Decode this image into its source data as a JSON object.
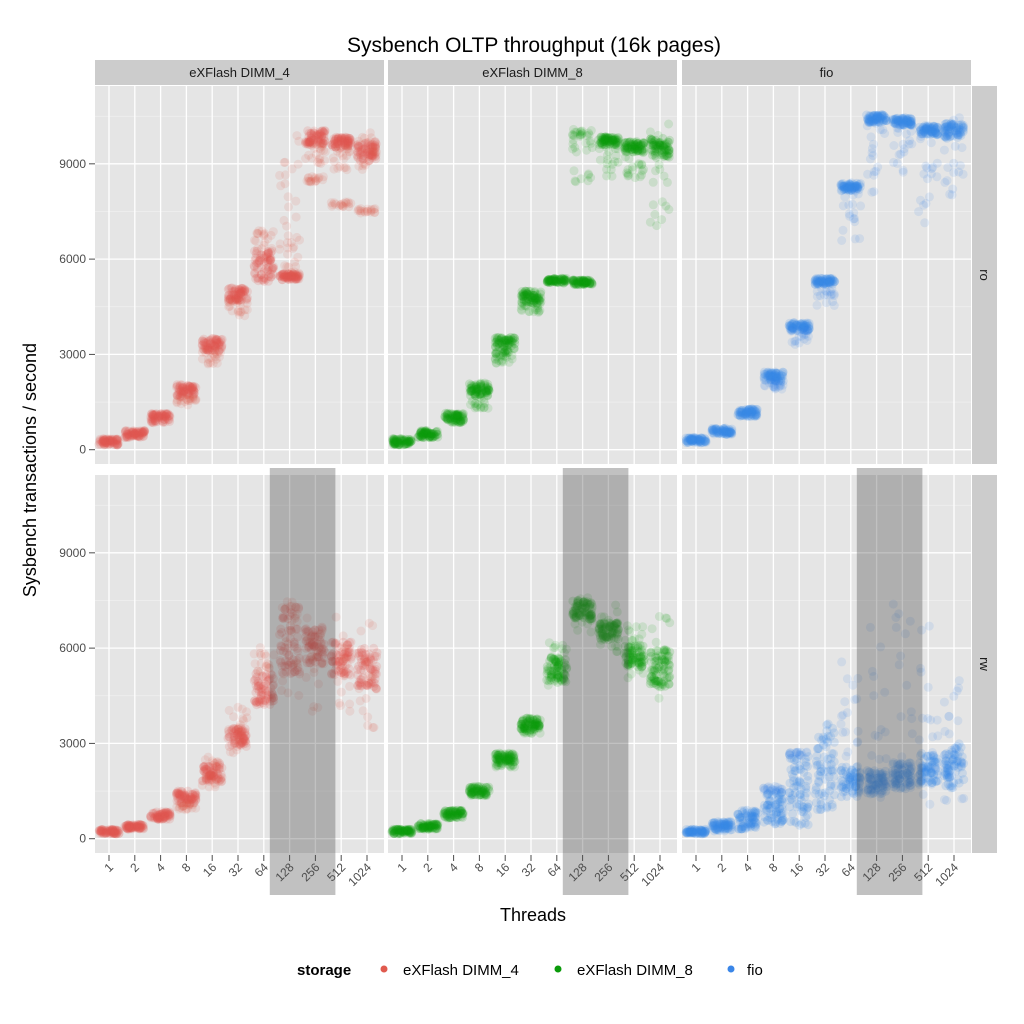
{
  "chart_data": {
    "type": "scatter",
    "title": "Sysbench OLTP throughput (16k pages)",
    "xlabel": "Threads",
    "ylabel": "Sysbench transactions / second",
    "x_categories": [
      "1",
      "2",
      "4",
      "8",
      "16",
      "32",
      "64",
      "128",
      "256",
      "512",
      "1024"
    ],
    "y_ticks": [
      "0",
      "3000",
      "6000",
      "9000"
    ],
    "ylim": [
      -450,
      11450
    ],
    "grid": true,
    "facet_columns": [
      "eXFlash DIMM_4",
      "eXFlash DIMM_8",
      "fio"
    ],
    "facet_rows": [
      "ro",
      "rw"
    ],
    "legend": {
      "title": "storage",
      "placement": "bottom",
      "entries": [
        "eXFlash DIMM_4",
        "eXFlash DIMM_8",
        "fio"
      ]
    },
    "colors": {
      "eXFlash DIMM_4": "#e05a4e",
      "eXFlash DIMM_8": "#0a9a0a",
      "fio": "#3a86e8"
    },
    "highlight_rw": {
      "from": "64",
      "to": "256"
    },
    "panels": [
      {
        "row": "ro",
        "storage": "eXFlash DIMM_4",
        "bands": [
          [
            [
              150,
              350
            ]
          ],
          [
            [
              380,
              600
            ]
          ],
          [
            [
              850,
              1150
            ]
          ],
          [
            [
              1650,
              2050
            ],
            [
              1400,
              1650
            ]
          ],
          [
            [
              3100,
              3500
            ],
            [
              2700,
              3100
            ]
          ],
          [
            [
              4700,
              5100
            ],
            [
              4200,
              4700
            ]
          ],
          [
            [
              5300,
              6300
            ],
            [
              6300,
              6900
            ]
          ],
          [
            [
              5350,
              5550
            ],
            [
              6600,
              10050
            ],
            [
              5550,
              6600
            ]
          ],
          [
            [
              9600,
              10050
            ],
            [
              8400,
              8600
            ],
            [
              9000,
              9600
            ]
          ],
          [
            [
              9500,
              9850
            ],
            [
              7650,
              7800
            ],
            [
              8800,
              9500
            ]
          ],
          [
            [
              9100,
              9700
            ],
            [
              7450,
              7600
            ],
            [
              8500,
              10000
            ]
          ]
        ]
      },
      {
        "row": "ro",
        "storage": "eXFlash DIMM_8",
        "bands": [
          [
            [
              150,
              350
            ]
          ],
          [
            [
              380,
              600
            ]
          ],
          [
            [
              850,
              1150
            ]
          ],
          [
            [
              1700,
              2100
            ],
            [
              1300,
              1700
            ]
          ],
          [
            [
              3000,
              3550
            ],
            [
              2700,
              3000
            ]
          ],
          [
            [
              4600,
              5000
            ],
            [
              4300,
              4600
            ]
          ],
          [
            [
              5250,
              5400
            ]
          ],
          [
            [
              5200,
              5350
            ],
            [
              9850,
              10100
            ],
            [
              8300,
              9800
            ]
          ],
          [
            [
              9600,
              9850
            ],
            [
              8600,
              9600
            ]
          ],
          [
            [
              9350,
              9700
            ],
            [
              8500,
              9350
            ]
          ],
          [
            [
              9200,
              9800
            ],
            [
              7000,
              10300
            ]
          ]
        ]
      },
      {
        "row": "ro",
        "storage": "fio",
        "bands": [
          [
            [
              220,
              380
            ]
          ],
          [
            [
              480,
              680
            ]
          ],
          [
            [
              1050,
              1300
            ]
          ],
          [
            [
              2150,
              2450
            ],
            [
              1900,
              2150
            ]
          ],
          [
            [
              3750,
              4000
            ],
            [
              3300,
              3750
            ]
          ],
          [
            [
              5200,
              5400
            ],
            [
              4500,
              5200
            ]
          ],
          [
            [
              8150,
              8400
            ],
            [
              6500,
              8150
            ]
          ],
          [
            [
              10300,
              10550
            ],
            [
              8000,
              10300
            ]
          ],
          [
            [
              10200,
              10450
            ],
            [
              8500,
              10200
            ]
          ],
          [
            [
              9900,
              10200
            ],
            [
              7000,
              9900
            ]
          ],
          [
            [
              9800,
              10300
            ],
            [
              8000,
              10600
            ]
          ]
        ]
      },
      {
        "row": "rw",
        "storage": "eXFlash DIMM_4",
        "bands": [
          [
            [
              150,
              300
            ]
          ],
          [
            [
              300,
              450
            ]
          ],
          [
            [
              600,
              850
            ]
          ],
          [
            [
              1100,
              1500
            ],
            [
              900,
              1100
            ]
          ],
          [
            [
              1800,
              2400
            ],
            [
              1600,
              2600
            ]
          ],
          [
            [
              2900,
              3500
            ],
            [
              2700,
              4200
            ]
          ],
          [
            [
              4200,
              5200
            ],
            [
              5200,
              6100
            ]
          ],
          [
            [
              5100,
              7300
            ],
            [
              4500,
              7600
            ]
          ],
          [
            [
              5500,
              6700
            ],
            [
              4000,
              7400
            ]
          ],
          [
            [
              5100,
              6200
            ],
            [
              3800,
              7000
            ]
          ],
          [
            [
              4700,
              6000
            ],
            [
              3500,
              6800
            ]
          ]
        ]
      },
      {
        "row": "rw",
        "storage": "eXFlash DIMM_8",
        "bands": [
          [
            [
              150,
              300
            ]
          ],
          [
            [
              300,
              480
            ]
          ],
          [
            [
              650,
              900
            ]
          ],
          [
            [
              1350,
              1650
            ]
          ],
          [
            [
              2400,
              2700
            ],
            [
              2250,
              2400
            ]
          ],
          [
            [
              3450,
              3800
            ],
            [
              3300,
              3450
            ]
          ],
          [
            [
              4900,
              5700
            ],
            [
              4600,
              6200
            ]
          ],
          [
            [
              6900,
              7500
            ],
            [
              6500,
              7700
            ]
          ],
          [
            [
              6250,
              6800
            ],
            [
              5800,
              7400
            ]
          ],
          [
            [
              5400,
              6100
            ],
            [
              5000,
              6800
            ]
          ],
          [
            [
              4800,
              6000
            ],
            [
              4400,
              7000
            ]
          ]
        ]
      },
      {
        "row": "rw",
        "storage": "fio",
        "bands": [
          [
            [
              150,
              300
            ]
          ],
          [
            [
              230,
              550
            ]
          ],
          [
            [
              300,
              900
            ]
          ],
          [
            [
              450,
              1500
            ],
            [
              1500,
              1650
            ]
          ],
          [
            [
              400,
              2600
            ],
            [
              2600,
              2750
            ]
          ],
          [
            [
              800,
              3800
            ]
          ],
          [
            [
              1300,
              2300
            ],
            [
              2300,
              5600
            ]
          ],
          [
            [
              1400,
              2200
            ],
            [
              1000,
              7000
            ]
          ],
          [
            [
              1550,
              2400
            ],
            [
              1000,
              7400
            ]
          ],
          [
            [
              1700,
              2700
            ],
            [
              1000,
              6700
            ]
          ],
          [
            [
              1600,
              3000
            ],
            [
              1000,
              5600
            ]
          ]
        ]
      }
    ]
  }
}
